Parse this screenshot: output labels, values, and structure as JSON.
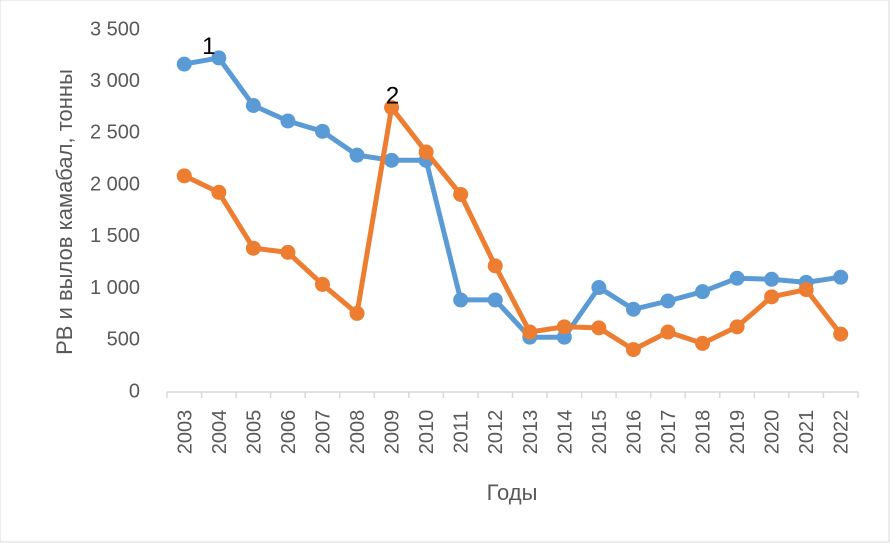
{
  "chart_data": {
    "type": "line",
    "title": "",
    "xlabel": "Годы",
    "ylabel": "РВ  и вылов камабал, тонны",
    "categories": [
      "2003",
      "2004",
      "2005",
      "2006",
      "2007",
      "2008",
      "2009",
      "2010",
      "2011",
      "2012",
      "2013",
      "2014",
      "2015",
      "2016",
      "2017",
      "2018",
      "2019",
      "2020",
      "2021",
      "2022"
    ],
    "y_tick_labels": [
      "0",
      "500",
      "1 000",
      "1 500",
      "2 000",
      "2 500",
      "3 000",
      "3 500"
    ],
    "y_ticks": [
      0,
      500,
      1000,
      1500,
      2000,
      2500,
      3000,
      3500
    ],
    "ylim": [
      0,
      3500
    ],
    "grid": false,
    "legend": "none",
    "series": [
      {
        "name": "1",
        "color": "#5B9BD5",
        "values": [
          3170,
          3230,
          2770,
          2620,
          2520,
          2290,
          2240,
          2240,
          890,
          890,
          530,
          530,
          1010,
          800,
          880,
          970,
          1100,
          1090,
          1060,
          1110
        ]
      },
      {
        "name": "2",
        "color": "#ED7D31",
        "values": [
          2090,
          1930,
          1390,
          1350,
          1040,
          760,
          2750,
          2320,
          1910,
          1220,
          580,
          630,
          620,
          410,
          580,
          470,
          630,
          920,
          990,
          560
        ]
      }
    ]
  }
}
